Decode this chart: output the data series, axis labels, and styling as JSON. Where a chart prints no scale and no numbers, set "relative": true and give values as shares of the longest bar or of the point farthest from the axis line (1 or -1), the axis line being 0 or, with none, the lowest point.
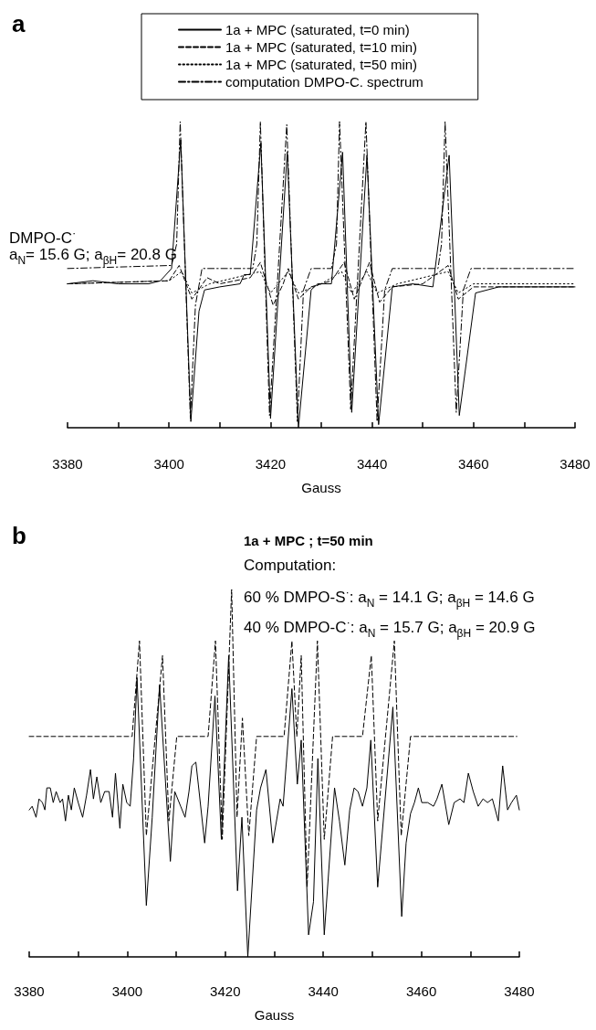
{
  "chart_data": [
    {
      "type": "line",
      "title": "a",
      "xlabel": "Gauss",
      "relative": true,
      "xlim": [
        3380,
        3480
      ],
      "xticks": [
        3380,
        {
          "value": 3390,
          "label": null
        },
        3400,
        {
          "value": 3410,
          "label": null
        },
        3420,
        {
          "value": 3430,
          "label": null
        },
        3440,
        {
          "value": 3450,
          "label": null
        },
        3460,
        {
          "value": 3470,
          "label": null
        },
        3480
      ],
      "tick_labels": "x",
      "grid": false,
      "legend": "top",
      "marker": "none",
      "annotations": [
        "DMPO-C$^{·}$",
        "a$_{N}$= 15.6 G; a$_{βH}$= 20.8 G"
      ],
      "series": [
        {
          "name": "1a + MPC (saturated, t=0 min)",
          "color": "#000000",
          "line_style": "solid",
          "x": [
            3380,
            3385,
            3390,
            3396,
            3398.3,
            3400.5,
            3402.3,
            3404.3,
            3405.9,
            3407,
            3410,
            3414,
            3414.8,
            3416,
            3418.1,
            3420,
            3423.3,
            3425.5,
            3428,
            3429.3,
            3432,
            3434.2,
            3436,
            3439,
            3441.3,
            3444,
            3448,
            3452,
            3455.2,
            3457.2,
            3460.4,
            3465,
            3480
          ],
          "values": [
            0.47,
            0.48,
            0.47,
            0.47,
            0.48,
            0.52,
            0.94,
            0.02,
            0.38,
            0.45,
            0.46,
            0.47,
            0.5,
            0.5,
            0.93,
            0.03,
            0.9,
            0,
            0.45,
            0.47,
            0.47,
            0.9,
            0.05,
            0.89,
            0.01,
            0.46,
            0.47,
            0.46,
            0.89,
            0.04,
            0.44,
            0.46,
            0.46
          ]
        },
        {
          "name": "1a + MPC (saturated, t=10 min)",
          "color": "#000000",
          "line_style": "dashed",
          "x": [
            3380,
            3400,
            3402,
            3404.5,
            3407.5,
            3410,
            3416,
            3418,
            3420.5,
            3422.5,
            3423.5,
            3425.5,
            3428,
            3432,
            3434.5,
            3436.5,
            3439.5,
            3441.5,
            3444,
            3450,
            3455,
            3457,
            3460,
            3480
          ],
          "values": [
            0.47,
            0.48,
            0.53,
            0.42,
            0.49,
            0.47,
            0.49,
            0.54,
            0.4,
            0.47,
            0.52,
            0.42,
            0.46,
            0.48,
            0.54,
            0.42,
            0.54,
            0.41,
            0.46,
            0.47,
            0.53,
            0.42,
            0.46,
            0.46
          ]
        },
        {
          "name": "1a + MPC (saturated, t=50 min)",
          "color": "#000000",
          "line_style": "dotted",
          "x": [
            3380,
            3400,
            3402.5,
            3404.5,
            3408,
            3418,
            3420,
            3423.5,
            3425.5,
            3430,
            3434,
            3436,
            3439,
            3441,
            3445,
            3455,
            3457,
            3460,
            3480
          ],
          "values": [
            0.47,
            0.48,
            0.51,
            0.44,
            0.47,
            0.51,
            0.44,
            0.51,
            0.44,
            0.47,
            0.51,
            0.44,
            0.51,
            0.44,
            0.47,
            0.51,
            0.44,
            0.47,
            0.47
          ]
        },
        {
          "name": "computation DMPO-C. spectrum",
          "color": "#000000",
          "line_style": "dashdot",
          "x": [
            3380,
            3400.5,
            3401.5,
            3402.2,
            3404.2,
            3405.2,
            3406.5,
            3416.5,
            3417.3,
            3418,
            3419.8,
            3423.2,
            3425.3,
            3426.5,
            3428,
            3432,
            3433,
            3433.6,
            3435.8,
            3438.8,
            3441,
            3442.5,
            3444,
            3453,
            3453.7,
            3454.4,
            3456.6,
            3458,
            3459.5,
            3480
          ],
          "values": [
            0.52,
            0.53,
            0.6,
            1,
            0.03,
            0.4,
            0.52,
            0.52,
            0.6,
            1,
            0.04,
            0.99,
            0.02,
            0.45,
            0.52,
            0.52,
            0.6,
            1,
            0.06,
            1,
            0.02,
            0.45,
            0.52,
            0.52,
            0.6,
            1,
            0.05,
            0.45,
            0.52,
            0.52
          ]
        }
      ]
    },
    {
      "type": "line",
      "title": "b",
      "xlabel": "Gauss",
      "relative": true,
      "xlim": [
        3380,
        3480
      ],
      "xticks": [
        3380,
        {
          "value": 3390,
          "label": null
        },
        3400,
        {
          "value": 3410,
          "label": null
        },
        3420,
        {
          "value": 3430,
          "label": null
        },
        3440,
        {
          "value": 3450,
          "label": null
        },
        3460,
        {
          "value": 3470,
          "label": null
        },
        3480
      ],
      "tick_labels": "x",
      "grid": false,
      "marker": "none",
      "annotations": [
        "1a + MPC ; t=50 min",
        "Computation:",
        "60 % DMPO-S$^{·}$: a$_{N}$ = 14.1 G; a$_{βH}$ = 14.6 G",
        "40 % DMPO-C$^{·}$: a$_{N}$ = 15.7 G; a$_{βH}$ = 20.9 G"
      ],
      "series": [
        {
          "color": "#000000",
          "line_style": "solid",
          "x": [
            3380,
            3380.6,
            3381.4,
            3382,
            3382.7,
            3383.2,
            3383.6,
            3384.3,
            3384.9,
            3385.5,
            3386.3,
            3386.8,
            3387.4,
            3388,
            3388.6,
            3389.2,
            3390,
            3390.9,
            3391.7,
            3392.5,
            3393.1,
            3393.8,
            3394.6,
            3395.4,
            3396.3,
            3397,
            3397.6,
            3398.5,
            3399.1,
            3399.9,
            3400.6,
            3401.3,
            3402,
            3403.9,
            3405.1,
            3406.6,
            3408.8,
            3409.7,
            3410.9,
            3411.8,
            3412.6,
            3413.2,
            3414,
            3414.5,
            3415.8,
            3416.5,
            3417.9,
            3419.2,
            3420.7,
            3422.5,
            3423.4,
            3424.6,
            3426.4,
            3427.2,
            3428.3,
            3429.7,
            3431.2,
            3431.8,
            3433.6,
            3434.7,
            3435.5,
            3437,
            3438,
            3438.9,
            3440.2,
            3442.3,
            3443.3,
            3444.4,
            3445.4,
            3446.3,
            3447.1,
            3448,
            3448.9,
            3449.7,
            3451.1,
            3454.2,
            3456,
            3456.9,
            3457.8,
            3458.6,
            3459.4,
            3460.1,
            3461.3,
            3462.5,
            3463.2,
            3464.2,
            3465.6,
            3466.7,
            3467.9,
            3468.7,
            3469.6,
            3470.6,
            3471.6,
            3472.6,
            3473.5,
            3474.5,
            3475.7,
            3476.6,
            3477.6,
            3478.4,
            3479.4,
            3480
          ],
          "values": [
            0.4,
            0.41,
            0.38,
            0.43,
            0.42,
            0.4,
            0.46,
            0.46,
            0.42,
            0.45,
            0.42,
            0.43,
            0.37,
            0.44,
            0.4,
            0.46,
            0.42,
            0.38,
            0.44,
            0.51,
            0.43,
            0.49,
            0.42,
            0.45,
            0.45,
            0.38,
            0.5,
            0.35,
            0.47,
            0.42,
            0.41,
            0.54,
            0.76,
            0.14,
            0.38,
            0.74,
            0.26,
            0.45,
            0.41,
            0.38,
            0.45,
            0.52,
            0.53,
            0.47,
            0.31,
            0.41,
            0.71,
            0.32,
            0.82,
            0.18,
            0.38,
            0,
            0.4,
            0.46,
            0.51,
            0.31,
            0.43,
            0.41,
            0.73,
            0.47,
            0.59,
            0.06,
            0.15,
            0.54,
            0.06,
            0.46,
            0.37,
            0.25,
            0.4,
            0.46,
            0.45,
            0.41,
            0.46,
            0.59,
            0.19,
            0.68,
            0.11,
            0.31,
            0.39,
            0.42,
            0.46,
            0.42,
            0.42,
            0.41,
            0.43,
            0.47,
            0.36,
            0.42,
            0.43,
            0.42,
            0.5,
            0.45,
            0.41,
            0.43,
            0.42,
            0.43,
            0.37,
            0.52,
            0.4,
            0.42,
            0.44,
            0.4
          ]
        },
        {
          "color": "#000000",
          "line_style": "dashed",
          "x": [
            3380,
            3401,
            3402.5,
            3403.9,
            3407.2,
            3408.5,
            3410.1,
            3416.5,
            3418,
            3419.4,
            3421.3,
            3422.4,
            3423.5,
            3424.8,
            3426.4,
            3432,
            3433.6,
            3434.6,
            3435.5,
            3436.7,
            3438.8,
            3440.2,
            3441.9,
            3448,
            3449.8,
            3451.1,
            3454.5,
            3455.9,
            3457.8,
            3479.5
          ],
          "values": [
            0.6,
            0.6,
            0.86,
            0.33,
            0.82,
            0.37,
            0.6,
            0.6,
            0.86,
            0.32,
            1,
            0.38,
            0.65,
            0.33,
            0.6,
            0.6,
            0.86,
            0.6,
            0.82,
            0.19,
            0.86,
            0.32,
            0.6,
            0.6,
            0.82,
            0.37,
            0.86,
            0.33,
            0.6,
            0.6
          ]
        }
      ]
    }
  ]
}
